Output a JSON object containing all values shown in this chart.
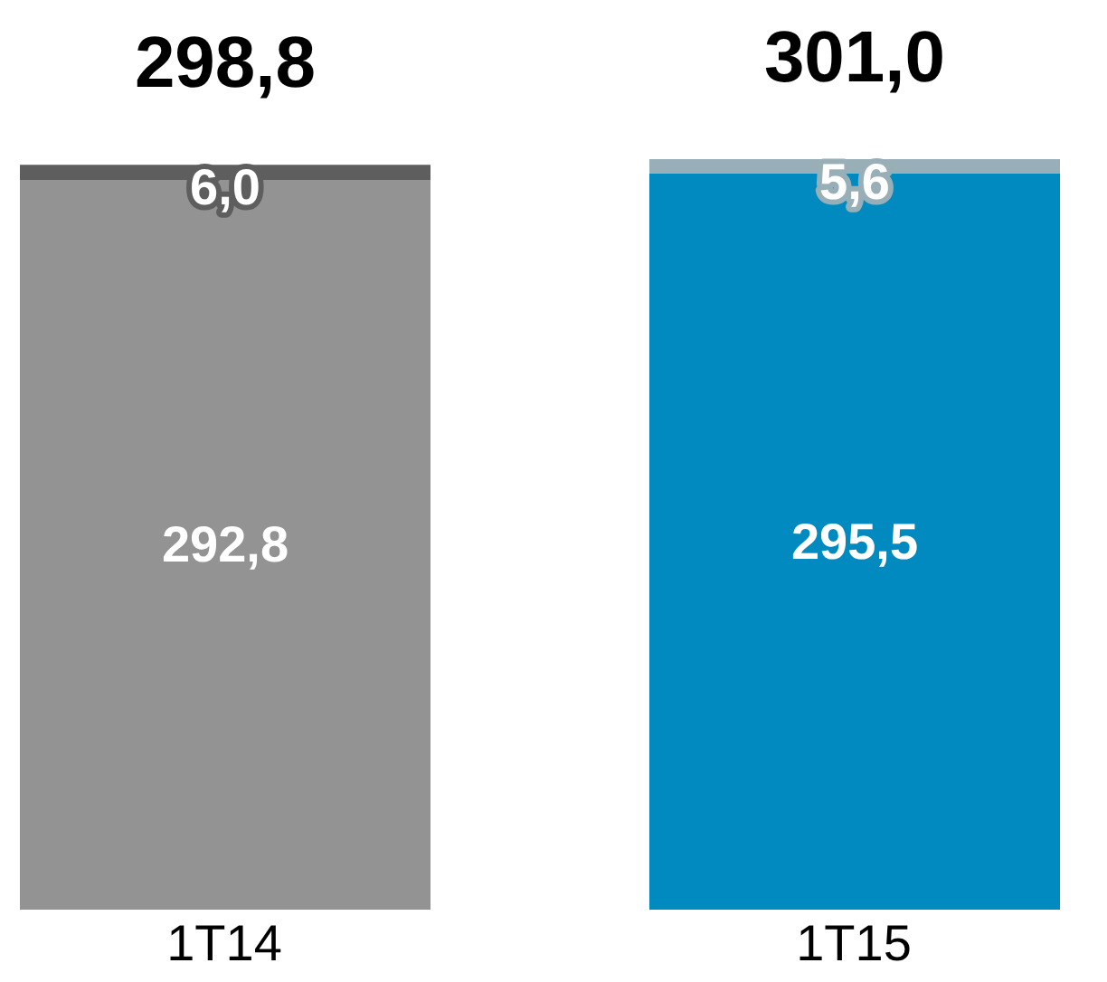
{
  "chart_data": {
    "type": "bar",
    "categories": [
      "1T14",
      "1T15"
    ],
    "stacked": true,
    "series": [
      {
        "colors": [
          "#939393",
          "#008abf"
        ],
        "values": [
          292.8,
          295.5
        ],
        "value_labels": [
          "292,8",
          "295,5"
        ]
      },
      {
        "colors": [
          "#5e5e5e",
          "#98afb8"
        ],
        "values": [
          6.0,
          5.6
        ],
        "value_labels": [
          "6,0",
          "5,6"
        ]
      }
    ],
    "totals": [
      "298,8",
      "301,0"
    ]
  }
}
